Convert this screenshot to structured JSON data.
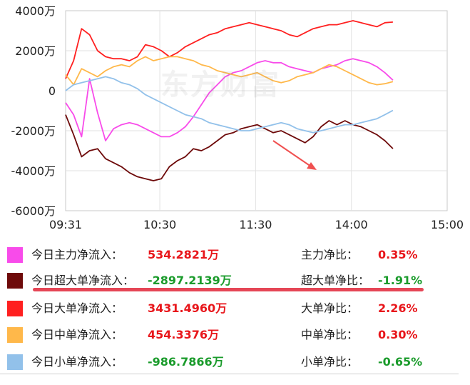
{
  "watermark": "东方财富",
  "chart_data": {
    "type": "line",
    "x_ticks": [
      "09:31",
      "10:30",
      "11:30",
      "14:00",
      "15:00"
    ],
    "y_ticks": [
      "4000万",
      "2000万",
      "0",
      "-2000万",
      "-4000万",
      "-6000万"
    ],
    "ylim": [
      -6000,
      4000
    ],
    "y_unit": "万",
    "grid": true,
    "series": [
      {
        "name": "今日主力净流入",
        "color": "#f84bea",
        "x": [
          0,
          5,
          10,
          15,
          20,
          25,
          30,
          35,
          40,
          45,
          50,
          55,
          60,
          65,
          70,
          75,
          80,
          85,
          90,
          95,
          100,
          105,
          110,
          115,
          120,
          125,
          130,
          135,
          140,
          145,
          150,
          155,
          160,
          165,
          170,
          175,
          180,
          185,
          190,
          195,
          200,
          205
        ],
        "values": [
          -600,
          -1200,
          -2300,
          600,
          -1100,
          -2500,
          -1900,
          -1700,
          -1600,
          -1700,
          -1900,
          -2100,
          -2300,
          -2300,
          -2100,
          -1800,
          -1300,
          -700,
          -100,
          300,
          700,
          900,
          1000,
          1200,
          1400,
          1500,
          1400,
          1400,
          1200,
          1100,
          1000,
          900,
          1100,
          1200,
          1300,
          1500,
          1600,
          1500,
          1400,
          1200,
          900,
          530
        ]
      },
      {
        "name": "今日超大单净流入",
        "color": "#6e0a0a",
        "x": [
          0,
          5,
          10,
          15,
          20,
          25,
          30,
          35,
          40,
          45,
          50,
          55,
          60,
          65,
          70,
          75,
          80,
          85,
          90,
          95,
          100,
          105,
          110,
          115,
          120,
          125,
          130,
          135,
          140,
          145,
          150,
          155,
          160,
          165,
          170,
          175,
          180,
          185,
          190,
          195,
          200,
          205
        ],
        "values": [
          -1200,
          -2200,
          -3300,
          -3000,
          -2900,
          -3400,
          -3600,
          -3800,
          -4100,
          -4300,
          -4400,
          -4500,
          -4400,
          -3800,
          -3500,
          -3300,
          -2900,
          -3000,
          -2800,
          -2500,
          -2200,
          -2100,
          -1900,
          -1800,
          -1700,
          -1900,
          -2100,
          -2000,
          -2200,
          -2400,
          -2600,
          -2300,
          -1800,
          -1500,
          -1700,
          -1500,
          -1700,
          -1800,
          -2000,
          -2200,
          -2500,
          -2897
        ]
      },
      {
        "name": "今日大单净流入",
        "color": "#ff2020",
        "x": [
          0,
          5,
          10,
          15,
          20,
          25,
          30,
          35,
          40,
          45,
          50,
          55,
          60,
          65,
          70,
          75,
          80,
          85,
          90,
          95,
          100,
          105,
          110,
          115,
          120,
          125,
          130,
          135,
          140,
          145,
          150,
          155,
          160,
          165,
          170,
          175,
          180,
          185,
          190,
          195,
          200,
          205
        ],
        "values": [
          600,
          1500,
          3100,
          2800,
          2000,
          1700,
          1600,
          1600,
          1500,
          1700,
          2300,
          2200,
          2000,
          1700,
          1900,
          2200,
          2400,
          2600,
          2800,
          2900,
          3100,
          3200,
          3300,
          3400,
          3300,
          3200,
          3100,
          3000,
          2800,
          2700,
          2900,
          3100,
          3200,
          3300,
          3300,
          3400,
          3500,
          3400,
          3300,
          3200,
          3400,
          3431
        ]
      },
      {
        "name": "今日中单净流入",
        "color": "#ffb84a",
        "x": [
          0,
          5,
          10,
          15,
          20,
          25,
          30,
          35,
          40,
          45,
          50,
          55,
          60,
          65,
          70,
          75,
          80,
          85,
          90,
          95,
          100,
          105,
          110,
          115,
          120,
          125,
          130,
          135,
          140,
          145,
          150,
          155,
          160,
          165,
          170,
          175,
          180,
          185,
          190,
          195,
          200,
          205
        ],
        "values": [
          800,
          300,
          1100,
          900,
          700,
          1000,
          1200,
          1300,
          1200,
          1500,
          1700,
          1500,
          1600,
          1700,
          1700,
          1600,
          1500,
          1300,
          1200,
          1000,
          900,
          800,
          700,
          800,
          900,
          700,
          500,
          400,
          500,
          700,
          800,
          900,
          1100,
          1300,
          1200,
          1000,
          800,
          600,
          400,
          300,
          350,
          454
        ]
      },
      {
        "name": "今日小单净流入",
        "color": "#92c1ea",
        "x": [
          0,
          5,
          10,
          15,
          20,
          25,
          30,
          35,
          40,
          45,
          50,
          55,
          60,
          65,
          70,
          75,
          80,
          85,
          90,
          95,
          100,
          105,
          110,
          115,
          120,
          125,
          130,
          135,
          140,
          145,
          150,
          155,
          160,
          165,
          170,
          175,
          180,
          185,
          190,
          195,
          200,
          205
        ],
        "values": [
          0,
          300,
          400,
          500,
          600,
          700,
          600,
          400,
          300,
          100,
          -200,
          -400,
          -600,
          -800,
          -1000,
          -1200,
          -1300,
          -1400,
          -1600,
          -1700,
          -1800,
          -1900,
          -2000,
          -2000,
          -1900,
          -1800,
          -1700,
          -1600,
          -1700,
          -1900,
          -2000,
          -2100,
          -2000,
          -1900,
          -1800,
          -1700,
          -1700,
          -1600,
          -1500,
          -1400,
          -1200,
          -987
        ]
      }
    ]
  },
  "legend": [
    {
      "label": "今日主力净流入：",
      "value": "534.2821万",
      "value_color": "red",
      "ratio_label": "主力净比：",
      "ratio_value": "0.35%",
      "ratio_color": "red",
      "color": "#f84bea"
    },
    {
      "label": "今日超大单净流入：",
      "value": "-2897.2139万",
      "value_color": "green",
      "ratio_label": "超大单净比：",
      "ratio_value": "-1.91%",
      "ratio_color": "green",
      "color": "#6e0a0a"
    },
    {
      "label": "今日大单净流入：",
      "value": "3431.4960万",
      "value_color": "red",
      "ratio_label": "大单净比：",
      "ratio_value": "2.26%",
      "ratio_color": "red",
      "color": "#ff2020"
    },
    {
      "label": "今日中单净流入：",
      "value": "454.3376万",
      "value_color": "red",
      "ratio_label": "中单净比：",
      "ratio_value": "0.30%",
      "ratio_color": "red",
      "color": "#ffb84a"
    },
    {
      "label": "今日小单净流入：",
      "value": "-986.7866万",
      "value_color": "green",
      "ratio_label": "小单净比：",
      "ratio_value": "-0.65%",
      "ratio_color": "green",
      "color": "#92c1ea"
    }
  ],
  "annotation": {
    "arrow_color": "#f05050",
    "underline_color": "#e54656"
  }
}
